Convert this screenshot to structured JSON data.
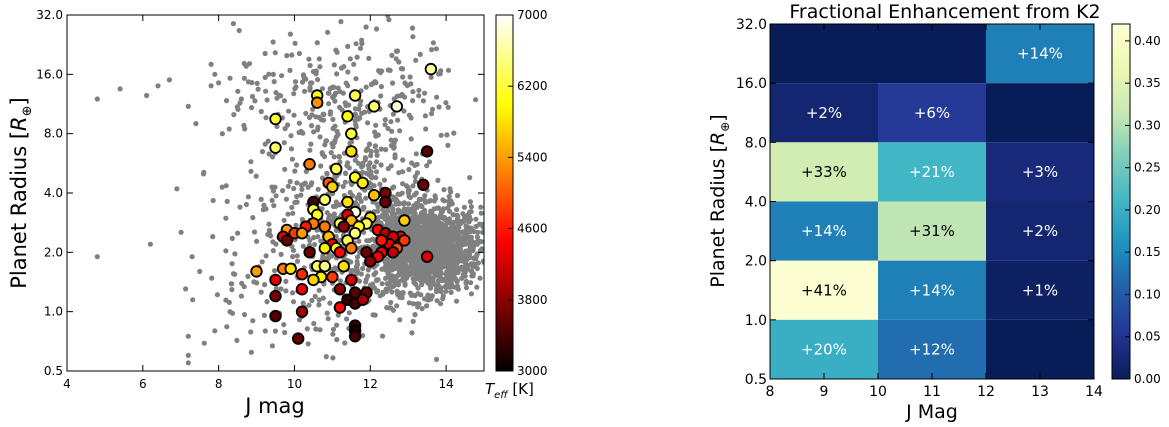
{
  "chart_data": [
    {
      "type": "scatter",
      "title": "",
      "xlabel": "J mag",
      "ylabel": "Planet Radius [R⊕]",
      "xlim": [
        4,
        15
      ],
      "ylim": [
        0.5,
        32.0
      ],
      "yscale": "log2",
      "x_ticks": [
        4,
        6,
        8,
        10,
        12,
        14
      ],
      "x_tick_labels": [
        "4",
        "6",
        "8",
        "10",
        "12",
        "14"
      ],
      "y_ticks": [
        0.5,
        1.0,
        2.0,
        4.0,
        8.0,
        16.0,
        32.0
      ],
      "y_tick_labels": [
        "0.5",
        "1.0",
        "2.0",
        "4.0",
        "8.0",
        "16.0",
        "32.0"
      ],
      "grid": false,
      "colorbar": {
        "label": "T_eff [K]",
        "colormap": "hot",
        "range": [
          3000,
          7000
        ],
        "ticks": [
          3000,
          3800,
          4600,
          5400,
          6200,
          7000
        ],
        "tick_labels": [
          "3000",
          "3800",
          "4600",
          "5400",
          "6200",
          "7000"
        ]
      },
      "background_series": {
        "color": "#808080",
        "description": "K2 planet candidates (gray dots, dense cloud at J≈12–15, R≈1–4)"
      },
      "highlighted_series": {
        "color_by": "teff",
        "points": [
          {
            "x": 13.6,
            "y": 17.0,
            "teff": 6600
          },
          {
            "x": 10.6,
            "y": 12.5,
            "teff": 6000
          },
          {
            "x": 10.6,
            "y": 11.5,
            "teff": 5300
          },
          {
            "x": 11.6,
            "y": 12.5,
            "teff": 6300
          },
          {
            "x": 12.1,
            "y": 11.0,
            "teff": 6400
          },
          {
            "x": 12.7,
            "y": 11.0,
            "teff": 6800
          },
          {
            "x": 9.5,
            "y": 9.5,
            "teff": 6200
          },
          {
            "x": 11.4,
            "y": 9.8,
            "teff": 6000
          },
          {
            "x": 11.5,
            "y": 8.0,
            "teff": 6200
          },
          {
            "x": 9.5,
            "y": 6.8,
            "teff": 6400
          },
          {
            "x": 11.5,
            "y": 6.5,
            "teff": 5800
          },
          {
            "x": 13.5,
            "y": 6.5,
            "teff": 3500
          },
          {
            "x": 10.4,
            "y": 5.6,
            "teff": 5200
          },
          {
            "x": 11.1,
            "y": 5.3,
            "teff": 6300
          },
          {
            "x": 11.6,
            "y": 4.8,
            "teff": 6100
          },
          {
            "x": 10.9,
            "y": 4.5,
            "teff": 5000
          },
          {
            "x": 11.8,
            "y": 4.5,
            "teff": 5900
          },
          {
            "x": 11.0,
            "y": 4.3,
            "teff": 5700
          },
          {
            "x": 12.4,
            "y": 4.0,
            "teff": 3700
          },
          {
            "x": 12.1,
            "y": 3.9,
            "teff": 5600
          },
          {
            "x": 13.4,
            "y": 4.4,
            "teff": 3600
          },
          {
            "x": 10.8,
            "y": 3.7,
            "teff": 6400
          },
          {
            "x": 10.5,
            "y": 3.6,
            "teff": 3400
          },
          {
            "x": 10.5,
            "y": 3.3,
            "teff": 6200
          },
          {
            "x": 11.4,
            "y": 3.6,
            "teff": 5800
          },
          {
            "x": 12.4,
            "y": 3.6,
            "teff": 3600
          },
          {
            "x": 10.6,
            "y": 3.1,
            "teff": 6100
          },
          {
            "x": 11.6,
            "y": 3.2,
            "teff": 6900
          },
          {
            "x": 11.4,
            "y": 3.1,
            "teff": 4300
          },
          {
            "x": 12.0,
            "y": 3.0,
            "teff": 5800
          },
          {
            "x": 11.5,
            "y": 2.9,
            "teff": 5500
          },
          {
            "x": 10.5,
            "y": 2.8,
            "teff": 5200
          },
          {
            "x": 10.3,
            "y": 2.7,
            "teff": 4600
          },
          {
            "x": 11.2,
            "y": 2.8,
            "teff": 6300
          },
          {
            "x": 11.9,
            "y": 2.8,
            "teff": 6300
          },
          {
            "x": 12.9,
            "y": 2.9,
            "teff": 5700
          },
          {
            "x": 9.8,
            "y": 2.6,
            "teff": 5400
          },
          {
            "x": 10.0,
            "y": 2.5,
            "teff": 4800
          },
          {
            "x": 10.2,
            "y": 2.5,
            "teff": 5400
          },
          {
            "x": 10.8,
            "y": 2.7,
            "teff": 5200
          },
          {
            "x": 11.3,
            "y": 2.7,
            "teff": 3800
          },
          {
            "x": 11.7,
            "y": 2.7,
            "teff": 6000
          },
          {
            "x": 12.2,
            "y": 2.6,
            "teff": 4500
          },
          {
            "x": 9.7,
            "y": 2.4,
            "teff": 4300
          },
          {
            "x": 10.9,
            "y": 2.4,
            "teff": 5600
          },
          {
            "x": 11.4,
            "y": 2.3,
            "teff": 6300
          },
          {
            "x": 11.6,
            "y": 2.5,
            "teff": 6500
          },
          {
            "x": 9.8,
            "y": 2.3,
            "teff": 3600
          },
          {
            "x": 12.4,
            "y": 2.5,
            "teff": 4000
          },
          {
            "x": 12.8,
            "y": 2.4,
            "teff": 4400
          },
          {
            "x": 12.7,
            "y": 2.2,
            "teff": 3900
          },
          {
            "x": 12.6,
            "y": 2.4,
            "teff": 4200
          },
          {
            "x": 12.9,
            "y": 2.3,
            "teff": 4800
          },
          {
            "x": 12.5,
            "y": 2.2,
            "teff": 4300
          },
          {
            "x": 12.3,
            "y": 2.3,
            "teff": 4600
          },
          {
            "x": 12.7,
            "y": 2.1,
            "teff": 4900
          },
          {
            "x": 12.6,
            "y": 2.0,
            "teff": 4100
          },
          {
            "x": 12.3,
            "y": 2.0,
            "teff": 4400
          },
          {
            "x": 11.0,
            "y": 2.2,
            "teff": 4400
          },
          {
            "x": 10.8,
            "y": 2.1,
            "teff": 5900
          },
          {
            "x": 11.1,
            "y": 2.1,
            "teff": 6000
          },
          {
            "x": 11.2,
            "y": 2.0,
            "teff": 4500
          },
          {
            "x": 10.4,
            "y": 2.0,
            "teff": 3600
          },
          {
            "x": 11.5,
            "y": 2.1,
            "teff": 5200
          },
          {
            "x": 11.9,
            "y": 2.0,
            "teff": 3600
          },
          {
            "x": 12.2,
            "y": 1.9,
            "teff": 4400
          },
          {
            "x": 13.5,
            "y": 1.9,
            "teff": 4300
          },
          {
            "x": 12.0,
            "y": 1.8,
            "teff": 3800
          },
          {
            "x": 9.7,
            "y": 1.65,
            "teff": 5200
          },
          {
            "x": 9.9,
            "y": 1.65,
            "teff": 5800
          },
          {
            "x": 10.6,
            "y": 1.7,
            "teff": 6300
          },
          {
            "x": 10.8,
            "y": 1.7,
            "teff": 6500
          },
          {
            "x": 11.3,
            "y": 1.7,
            "teff": 5800
          },
          {
            "x": 9.0,
            "y": 1.6,
            "teff": 5400
          },
          {
            "x": 10.2,
            "y": 1.55,
            "teff": 4700
          },
          {
            "x": 10.7,
            "y": 1.5,
            "teff": 5900
          },
          {
            "x": 10.5,
            "y": 1.45,
            "teff": 5700
          },
          {
            "x": 11.0,
            "y": 1.5,
            "teff": 4800
          },
          {
            "x": 9.5,
            "y": 1.45,
            "teff": 4300
          },
          {
            "x": 11.5,
            "y": 1.45,
            "teff": 4200
          },
          {
            "x": 10.2,
            "y": 1.3,
            "teff": 4400
          },
          {
            "x": 11.2,
            "y": 1.3,
            "teff": 3800
          },
          {
            "x": 11.6,
            "y": 1.25,
            "teff": 3500
          },
          {
            "x": 11.9,
            "y": 1.25,
            "teff": 3600
          },
          {
            "x": 9.5,
            "y": 1.2,
            "teff": 3700
          },
          {
            "x": 11.4,
            "y": 1.15,
            "teff": 3300
          },
          {
            "x": 11.6,
            "y": 1.1,
            "teff": 3400
          },
          {
            "x": 11.8,
            "y": 1.15,
            "teff": 4000
          },
          {
            "x": 11.2,
            "y": 1.05,
            "teff": 4500
          },
          {
            "x": 10.2,
            "y": 1.0,
            "teff": 3900
          },
          {
            "x": 9.5,
            "y": 0.95,
            "teff": 3500
          },
          {
            "x": 11.6,
            "y": 0.85,
            "teff": 3300
          },
          {
            "x": 11.6,
            "y": 0.8,
            "teff": 3200
          },
          {
            "x": 11.6,
            "y": 0.75,
            "teff": 3400
          },
          {
            "x": 10.1,
            "y": 0.73,
            "teff": 3600
          }
        ]
      }
    },
    {
      "type": "heatmap",
      "title": "Fractional Enhancement from K2",
      "xlabel": "J Mag",
      "ylabel": "Planet Radius [R⊕]",
      "x_edges": [
        8,
        10,
        12,
        14
      ],
      "x_ticks": [
        "8",
        "9",
        "10",
        "11",
        "12",
        "13",
        "14"
      ],
      "y_edges": [
        0.5,
        1.0,
        2.0,
        4.0,
        8.0,
        16.0,
        32.0
      ],
      "y_ticks": [
        "0.5",
        "1.0",
        "2.0",
        "4.0",
        "8.0",
        "16.0",
        "32.0"
      ],
      "yscale": "log2",
      "colormap": "YlGnBu",
      "colorbar": {
        "range": [
          0.0,
          0.42
        ],
        "ticks": [
          0.0,
          0.05,
          0.1,
          0.15,
          0.2,
          0.25,
          0.3,
          0.35,
          0.4
        ],
        "tick_labels": [
          "0.00",
          "0.05",
          "0.10",
          "0.15",
          "0.20",
          "0.25",
          "0.30",
          "0.35",
          "0.40"
        ]
      },
      "rows_top_to_bottom": [
        [
          {
            "v": 0.0,
            "label": ""
          },
          {
            "v": 0.0,
            "label": ""
          },
          {
            "v": 0.14,
            "label": "+14%"
          }
        ],
        [
          {
            "v": 0.02,
            "label": "+2%"
          },
          {
            "v": 0.06,
            "label": "+6%"
          },
          {
            "v": 0.0,
            "label": ""
          }
        ],
        [
          {
            "v": 0.33,
            "label": "+33%"
          },
          {
            "v": 0.21,
            "label": "+21%"
          },
          {
            "v": 0.03,
            "label": "+3%"
          }
        ],
        [
          {
            "v": 0.14,
            "label": "+14%"
          },
          {
            "v": 0.31,
            "label": "+31%"
          },
          {
            "v": 0.02,
            "label": "+2%"
          }
        ],
        [
          {
            "v": 0.41,
            "label": "+41%"
          },
          {
            "v": 0.14,
            "label": "+14%"
          },
          {
            "v": 0.01,
            "label": "+1%"
          }
        ],
        [
          {
            "v": 0.2,
            "label": "+20%"
          },
          {
            "v": 0.12,
            "label": "+12%"
          },
          {
            "v": 0.0,
            "label": ""
          }
        ]
      ]
    }
  ]
}
